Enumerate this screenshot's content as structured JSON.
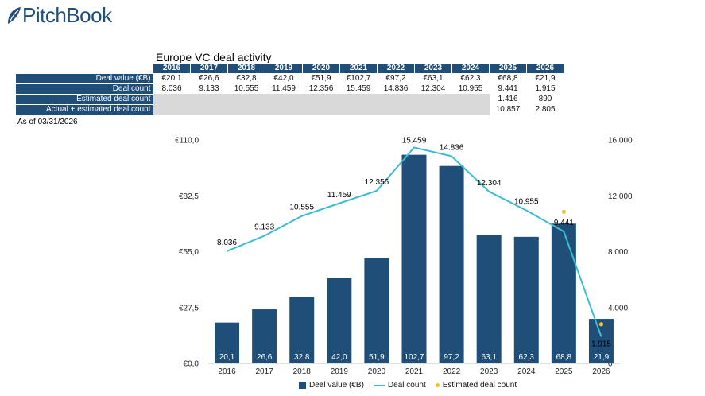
{
  "brand": {
    "name": "PitchBook",
    "color": "#1f4e79"
  },
  "title": "Europe VC deal activity",
  "as_of": "As of 03/31/2026",
  "table": {
    "years": [
      "2016",
      "2017",
      "2018",
      "2019",
      "2020",
      "2021",
      "2022",
      "2023",
      "2024",
      "2025",
      "2026"
    ],
    "rows": [
      {
        "label": "Deal value (€B)",
        "values": [
          "€20,1",
          "€26,6",
          "€32,8",
          "€42,0",
          "€51,9",
          "€102,7",
          "€97,2",
          "€63,1",
          "€62,3",
          "€68,8",
          "€21,9"
        ]
      },
      {
        "label": "Deal count",
        "values": [
          "8.036",
          "9.133",
          "10.555",
          "11.459",
          "12.356",
          "15.459",
          "14.836",
          "12.304",
          "10.955",
          "9.441",
          "1.915"
        ]
      },
      {
        "label": "Estimated deal count",
        "values": [
          "",
          "",
          "",
          "",
          "",
          "",
          "",
          "",
          "",
          "1.416",
          "890"
        ]
      },
      {
        "label": "Actual + estimated deal count",
        "values": [
          "",
          "",
          "",
          "",
          "",
          "",
          "",
          "",
          "",
          "10.857",
          "2.805"
        ]
      }
    ]
  },
  "chart_data": {
    "type": "bar+line",
    "categories": [
      "2016",
      "2017",
      "2018",
      "2019",
      "2020",
      "2021",
      "2022",
      "2023",
      "2024",
      "2025",
      "2026"
    ],
    "series": [
      {
        "name": "Deal value (€B)",
        "type": "bar",
        "axis": "left",
        "color": "#1f4e79",
        "values": [
          20.1,
          26.6,
          32.8,
          42.0,
          51.9,
          102.7,
          97.2,
          63.1,
          62.3,
          68.8,
          21.9
        ],
        "labels": [
          "20,1",
          "26,6",
          "32,8",
          "42,0",
          "51,9",
          "102,7",
          "97,2",
          "63,1",
          "62,3",
          "68,8",
          "21,9"
        ]
      },
      {
        "name": "Deal count",
        "type": "line",
        "axis": "right",
        "color": "#3bbcd1",
        "values": [
          8036,
          9133,
          10555,
          11459,
          12356,
          15459,
          14836,
          12304,
          10955,
          9441,
          1915
        ],
        "labels": [
          "8.036",
          "9.133",
          "10.555",
          "11.459",
          "12.356",
          "15.459",
          "14.836",
          "12.304",
          "10.955",
          "9.441",
          "1.915"
        ]
      },
      {
        "name": "Estimated deal count",
        "type": "scatter",
        "axis": "right",
        "color": "#f2c12e",
        "points": [
          {
            "x": "2025",
            "y": 10857
          },
          {
            "x": "2026",
            "y": 2805
          }
        ]
      }
    ],
    "left_axis": {
      "min": 0,
      "max": 110,
      "ticks": [
        0,
        27.5,
        55,
        82.5,
        110
      ],
      "tick_labels": [
        "€0,0",
        "€27,5",
        "€55,0",
        "€82,5",
        "€110,0"
      ]
    },
    "right_axis": {
      "min": 0,
      "max": 16000,
      "ticks": [
        0,
        4000,
        8000,
        12000,
        16000
      ],
      "tick_labels": [
        "0",
        "4.000",
        "8.000",
        "12.000",
        "16.000"
      ]
    },
    "legend_position": "bottom",
    "grid": false
  }
}
